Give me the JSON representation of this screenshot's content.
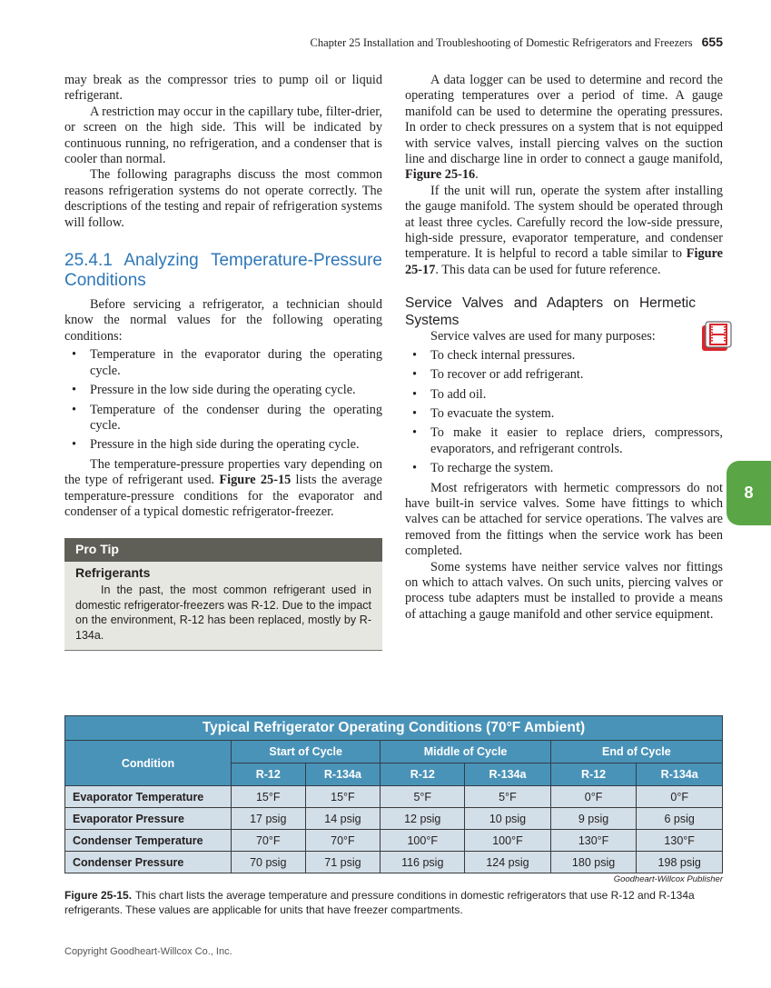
{
  "header": {
    "running_title": "Chapter 25 Installation and Troubleshooting of Domestic Refrigerators and Freezers",
    "page_number": "655"
  },
  "left": {
    "p1": "may break as the compressor tries to pump oil or liquid refrigerant.",
    "p2": "A restriction may occur in the capillary tube, filter-drier, or screen on the high side. This will be indicated by continuous running, no refrigeration, and a condenser that is cooler than normal.",
    "p3": "The following paragraphs discuss the most common reasons refrigeration systems do not operate correctly. The descriptions of the testing and repair of refrigeration systems will follow.",
    "heading": "25.4.1 Analyzing Temperature-Pressure Conditions",
    "p4": "Before servicing a refrigerator, a technician should know the normal values for the following operating conditions:",
    "bullets": [
      "Temperature in the evaporator during the operating cycle.",
      "Pressure in the low side during the operating cycle.",
      "Temperature of the condenser during the operating cycle.",
      "Pressure in the high side during the operating cycle."
    ],
    "p5a": "The temperature-pressure properties vary depending on the type of refrigerant used.",
    "p5ref": "Figure 25-15",
    "p5b": "lists the average temperature-pressure conditions for the evaporator and condenser of a typical domestic refrigerator-freezer.",
    "protip": {
      "label": "Pro Tip",
      "title": "Refrigerants",
      "body": "In the past, the most common refrigerant used in domestic refrigerator-freezers was R-12. Due to the impact on the environment, R-12 has been replaced, mostly by R-134a."
    }
  },
  "right": {
    "p1a": "A data logger can be used to determine and record the operating temperatures over a period of time. A gauge manifold can be used to determine the operating pressures. In order to check pressures on a system that is not equipped with service valves, install piercing valves on the suction line and discharge line in order to connect a gauge manifold,",
    "p1ref": "Figure 25-16",
    "p2a": "If the unit will run, operate the system after installing the gauge manifold. The system should be operated through at least three cycles. Carefully record the low-side pressure, high-side pressure, evaporator temperature, and condenser temperature. It is helpful to record a table similar to",
    "p2ref": "Figure 25-17",
    "p2b": "This data can be used for future reference.",
    "heading": "Service Valves and Adapters on Hermetic Systems",
    "p3": "Service valves are used for many purposes:",
    "bullets": [
      "To check internal pressures.",
      "To recover or add refrigerant.",
      "To add oil.",
      "To evacuate the system.",
      "To make it easier to replace driers, compressors, evaporators, and refrigerant controls.",
      "To recharge the system."
    ],
    "p4": "Most refrigerators with hermetic compressors do not have built-in service valves. Some have fittings to which valves can be attached for service operations. The valves are removed from the fittings when the service work has been completed.",
    "p5": "Some systems have neither service valves nor fittings on which to attach valves. On such units, piercing valves or process tube adapters must be installed to provide a means of attaching a gauge manifold and other service equipment.",
    "icon": "video-film-icon"
  },
  "chapter_tab": "8",
  "table": {
    "title": "Typical Refrigerator Operating Conditions (70°F Ambient)",
    "condition_header": "Condition",
    "groups": [
      "Start of Cycle",
      "Middle of Cycle",
      "End of Cycle"
    ],
    "subheaders": [
      "R-12",
      "R-134a",
      "R-12",
      "R-134a",
      "R-12",
      "R-134a"
    ],
    "rows": [
      {
        "label": "Evaporator Temperature",
        "values": [
          "15°F",
          "15°F",
          "5°F",
          "5°F",
          "0°F",
          "0°F"
        ]
      },
      {
        "label": "Evaporator Pressure",
        "values": [
          "17 psig",
          "14 psig",
          "12 psig",
          "10 psig",
          "9 psig",
          "6 psig"
        ]
      },
      {
        "label": "Condenser Temperature",
        "values": [
          "70°F",
          "70°F",
          "100°F",
          "100°F",
          "130°F",
          "130°F"
        ]
      },
      {
        "label": "Condenser Pressure",
        "values": [
          "70 psig",
          "71 psig",
          "116 psig",
          "124 psig",
          "180 psig",
          "198 psig"
        ]
      }
    ]
  },
  "credit": "Goodheart-Willcox Publisher",
  "caption": {
    "label": "Figure 25-15.",
    "text": "This chart lists the average temperature and pressure conditions in domestic refrigerators that use R-12 and R-134a refrigerants. These values are applicable for units that have freezer compartments."
  },
  "copyright": "Copyright Goodheart-Willcox Co., Inc.",
  "colors": {
    "heading": "#2e77b8",
    "table_header": "#4a93b8",
    "table_row": "#d3dfe8",
    "chapter_tab": "#5aa646",
    "protip_bar": "#5f5f57"
  }
}
